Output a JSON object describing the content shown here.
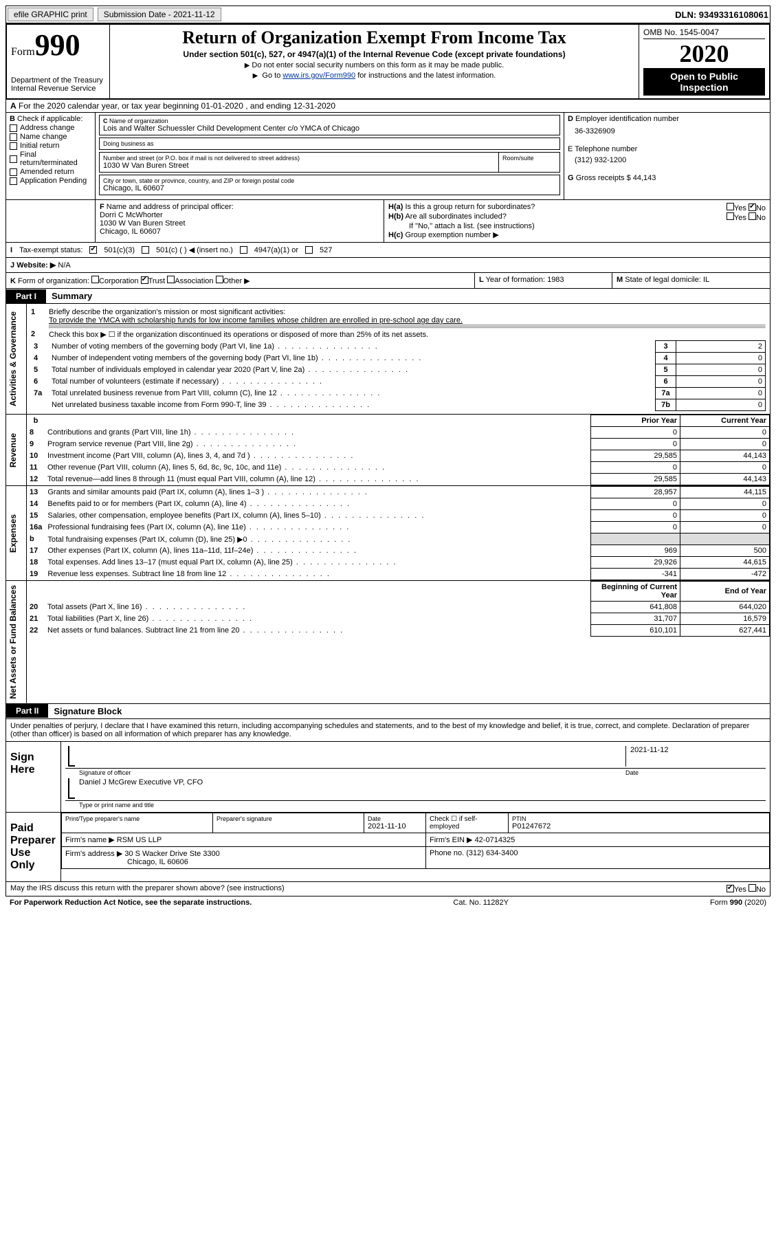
{
  "topbar": {
    "efile": "efile GRAPHIC print",
    "subdate_label": "Submission Date - 2021-11-12",
    "dln": "DLN: 93493316108061"
  },
  "header": {
    "form_word": "Form",
    "form_num": "990",
    "dept": "Department of the Treasury",
    "irs": "Internal Revenue Service",
    "title": "Return of Organization Exempt From Income Tax",
    "subtitle": "Under section 501(c), 527, or 4947(a)(1) of the Internal Revenue Code (except private foundations)",
    "note1": "Do not enter social security numbers on this form as it may be made public.",
    "note2_pre": "Go to ",
    "note2_link": "www.irs.gov/Form990",
    "note2_post": " for instructions and the latest information.",
    "omb": "OMB No. 1545-0047",
    "year": "2020",
    "inspect": "Open to Public Inspection"
  },
  "section_a": "For the 2020 calendar year, or tax year beginning 01-01-2020   , and ending 12-31-2020",
  "section_b": {
    "label": "Check if applicable:",
    "items": [
      "Address change",
      "Name change",
      "Initial return",
      "Final return/terminated",
      "Amended return",
      "Application Pending"
    ]
  },
  "section_c": {
    "name_label": "Name of organization",
    "name": "Lois and Walter Schuessler Child Development Center c/o YMCA of Chicago",
    "dba_label": "Doing business as",
    "addr_label": "Number and street (or P.O. box if mail is not delivered to street address)",
    "room_label": "Room/suite",
    "addr": "1030 W Van Buren Street",
    "city_label": "City or town, state or province, country, and ZIP or foreign postal code",
    "city": "Chicago, IL  60607"
  },
  "section_d": {
    "ein_label": "Employer identification number",
    "ein": "36-3326909",
    "phone_label": "E Telephone number",
    "phone": "(312) 932-1200",
    "gross_label": "Gross receipts $ 44,143"
  },
  "section_f": {
    "label": "Name and address of principal officer:",
    "name": "Dorri C McWhorter",
    "addr1": "1030 W Van Buren Street",
    "addr2": "Chicago, IL  60607"
  },
  "section_h": {
    "a": "Is this a group return for subordinates?",
    "b": "Are all subordinates included?",
    "b_note": "If \"No,\" attach a list. (see instructions)",
    "c": "Group exemption number ▶",
    "yes": "Yes",
    "no": "No"
  },
  "tax_status": {
    "label": "Tax-exempt status:",
    "o1": "501(c)(3)",
    "o2": "501(c) (   ) ◀ (insert no.)",
    "o3": "4947(a)(1) or",
    "o4": "527"
  },
  "website": {
    "label": "Website: ▶",
    "val": "N/A"
  },
  "krow": {
    "k": "Form of organization:",
    "opts": [
      "Corporation",
      "Trust",
      "Association",
      "Other ▶"
    ],
    "l": "Year of formation: 1983",
    "m": "State of legal domicile: IL"
  },
  "part1": {
    "tab": "Part I",
    "title": "Summary",
    "ln1_label": "Briefly describe the organization's mission or most significant activities:",
    "ln1_text": "To provide the YMCA with scholarship funds for low income families whose children are enrolled in pre-school age day care.",
    "ln2": "Check this box ▶ ☐  if the organization discontinued its operations or disposed of more than 25% of its net assets.",
    "gov_rows": [
      {
        "n": "3",
        "t": "Number of voting members of the governing body (Part VI, line 1a)",
        "k": "3",
        "v": "2"
      },
      {
        "n": "4",
        "t": "Number of independent voting members of the governing body (Part VI, line 1b)",
        "k": "4",
        "v": "0"
      },
      {
        "n": "5",
        "t": "Total number of individuals employed in calendar year 2020 (Part V, line 2a)",
        "k": "5",
        "v": "0"
      },
      {
        "n": "6",
        "t": "Total number of volunteers (estimate if necessary)",
        "k": "6",
        "v": "0"
      },
      {
        "n": "7a",
        "t": "Total unrelated business revenue from Part VIII, column (C), line 12",
        "k": "7a",
        "v": "0"
      },
      {
        "n": "",
        "t": "Net unrelated business taxable income from Form 990-T, line 39",
        "k": "7b",
        "v": "0"
      }
    ],
    "rev_head": {
      "b": "b",
      "py": "Prior Year",
      "cy": "Current Year"
    },
    "rev_rows": [
      {
        "n": "8",
        "t": "Contributions and grants (Part VIII, line 1h)",
        "py": "0",
        "cy": "0"
      },
      {
        "n": "9",
        "t": "Program service revenue (Part VIII, line 2g)",
        "py": "0",
        "cy": "0"
      },
      {
        "n": "10",
        "t": "Investment income (Part VIII, column (A), lines 3, 4, and 7d )",
        "py": "29,585",
        "cy": "44,143"
      },
      {
        "n": "11",
        "t": "Other revenue (Part VIII, column (A), lines 5, 6d, 8c, 9c, 10c, and 11e)",
        "py": "0",
        "cy": "0"
      },
      {
        "n": "12",
        "t": "Total revenue—add lines 8 through 11 (must equal Part VIII, column (A), line 12)",
        "py": "29,585",
        "cy": "44,143"
      }
    ],
    "exp_rows": [
      {
        "n": "13",
        "t": "Grants and similar amounts paid (Part IX, column (A), lines 1–3 )",
        "py": "28,957",
        "cy": "44,115"
      },
      {
        "n": "14",
        "t": "Benefits paid to or for members (Part IX, column (A), line 4)",
        "py": "0",
        "cy": "0"
      },
      {
        "n": "15",
        "t": "Salaries, other compensation, employee benefits (Part IX, column (A), lines 5–10)",
        "py": "0",
        "cy": "0"
      },
      {
        "n": "16a",
        "t": "Professional fundraising fees (Part IX, column (A), line 11e)",
        "py": "0",
        "cy": "0"
      },
      {
        "n": "b",
        "t": "Total fundraising expenses (Part IX, column (D), line 25) ▶0",
        "py": "",
        "cy": ""
      },
      {
        "n": "17",
        "t": "Other expenses (Part IX, column (A), lines 11a–11d, 11f–24e)",
        "py": "969",
        "cy": "500"
      },
      {
        "n": "18",
        "t": "Total expenses. Add lines 13–17 (must equal Part IX, column (A), line 25)",
        "py": "29,926",
        "cy": "44,615"
      },
      {
        "n": "19",
        "t": "Revenue less expenses. Subtract line 18 from line 12",
        "py": "-341",
        "cy": "-472"
      }
    ],
    "net_head": {
      "py": "Beginning of Current Year",
      "cy": "End of Year"
    },
    "net_rows": [
      {
        "n": "20",
        "t": "Total assets (Part X, line 16)",
        "py": "641,808",
        "cy": "644,020"
      },
      {
        "n": "21",
        "t": "Total liabilities (Part X, line 26)",
        "py": "31,707",
        "cy": "16,579"
      },
      {
        "n": "22",
        "t": "Net assets or fund balances. Subtract line 21 from line 20",
        "py": "610,101",
        "cy": "627,441"
      }
    ],
    "vlabels": {
      "gov": "Activities & Governance",
      "rev": "Revenue",
      "exp": "Expenses",
      "net": "Net Assets or Fund Balances"
    }
  },
  "part2": {
    "tab": "Part II",
    "title": "Signature Block",
    "decl": "Under penalties of perjury, I declare that I have examined this return, including accompanying schedules and statements, and to the best of my knowledge and belief, it is true, correct, and complete. Declaration of preparer (other than officer) is based on all information of which preparer has any knowledge.",
    "sign_here": "Sign Here",
    "sig_officer": "Signature of officer",
    "sig_date": "2021-11-12",
    "date_lbl": "Date",
    "officer_name": "Daniel J McGrew  Executive VP, CFO",
    "type_lbl": "Type or print name and title",
    "paid": "Paid Preparer Use Only",
    "prep_name_lbl": "Print/Type preparer's name",
    "prep_sig_lbl": "Preparer's signature",
    "prep_date_lbl": "Date",
    "prep_date": "2021-11-10",
    "check_self": "Check ☐  if self-employed",
    "ptin_lbl": "PTIN",
    "ptin": "P01247672",
    "firm_name_lbl": "Firm's name    ▶",
    "firm_name": "RSM US LLP",
    "firm_ein_lbl": "Firm's EIN ▶",
    "firm_ein": "42-0714325",
    "firm_addr_lbl": "Firm's address ▶",
    "firm_addr1": "30 S Wacker Drive Ste 3300",
    "firm_addr2": "Chicago, IL  60606",
    "firm_phone_lbl": "Phone no.",
    "firm_phone": "(312) 634-3400",
    "discuss": "May the IRS discuss this return with the preparer shown above? (see instructions)"
  },
  "footer": {
    "left": "For Paperwork Reduction Act Notice, see the separate instructions.",
    "mid": "Cat. No. 11282Y",
    "right": "Form 990 (2020)"
  },
  "colors": {
    "black": "#000000",
    "link": "#003399",
    "btn_bg": "#e8e8e8"
  }
}
